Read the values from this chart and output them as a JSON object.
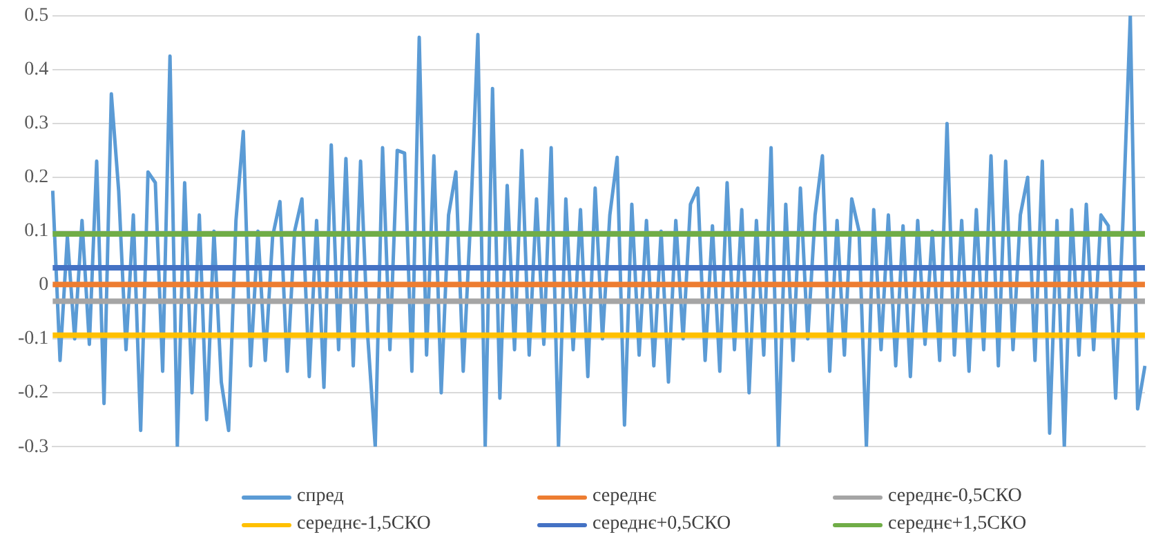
{
  "chart_data": {
    "type": "line",
    "categories": [
      null,
      null,
      null,
      null,
      null,
      null,
      null,
      null,
      null,
      null,
      null,
      null,
      null,
      null,
      null,
      null,
      null,
      null,
      null,
      null,
      null,
      null,
      null,
      null,
      null,
      null,
      null,
      null,
      null,
      null,
      null,
      null,
      null,
      null,
      null,
      null,
      null,
      null,
      null,
      null,
      null,
      null,
      null,
      null,
      null,
      null,
      null,
      null,
      null,
      null,
      null,
      null,
      null,
      null,
      null,
      null,
      null,
      null,
      null,
      null,
      null,
      null,
      null,
      null,
      null,
      null,
      null,
      null,
      null,
      null,
      null,
      null,
      null,
      null,
      null,
      null,
      null,
      null,
      null,
      null,
      null,
      null,
      null,
      null,
      null,
      null,
      null,
      null,
      null,
      null,
      null,
      null,
      null,
      null,
      null,
      null,
      null,
      null,
      null,
      null,
      null,
      null,
      null,
      null,
      null,
      null,
      null,
      null,
      null,
      null,
      null,
      null,
      null,
      null,
      null,
      null,
      null,
      null,
      null,
      null,
      null,
      null,
      null,
      null,
      null,
      null,
      null,
      null,
      null,
      null,
      null,
      null,
      null,
      null,
      null,
      null,
      null,
      null,
      null,
      null,
      null,
      null,
      null,
      null,
      null,
      null,
      null,
      null,
      null,
      null
    ],
    "series": [
      {
        "name": "спред",
        "color": "#5b9bd5",
        "values": [
          0.175,
          -0.14,
          0.09,
          -0.1,
          0.12,
          -0.11,
          0.23,
          -0.22,
          0.355,
          0.175,
          -0.12,
          0.13,
          -0.27,
          0.21,
          0.19,
          -0.16,
          0.425,
          -0.3,
          0.19,
          -0.2,
          0.13,
          -0.25,
          0.1,
          -0.18,
          -0.27,
          0.12,
          0.285,
          -0.15,
          0.1,
          -0.14,
          0.09,
          0.155,
          -0.16,
          0.1,
          0.16,
          -0.17,
          0.12,
          -0.19,
          0.26,
          -0.12,
          0.235,
          -0.15,
          0.23,
          -0.1,
          -0.3,
          0.255,
          -0.12,
          0.25,
          0.245,
          -0.16,
          0.46,
          -0.13,
          0.24,
          -0.2,
          0.13,
          0.21,
          -0.16,
          0.12,
          0.465,
          -0.3,
          0.365,
          -0.21,
          0.185,
          -0.12,
          0.25,
          -0.13,
          0.16,
          -0.11,
          0.255,
          -0.3,
          0.16,
          -0.12,
          0.14,
          -0.17,
          0.18,
          -0.1,
          0.13,
          0.237,
          -0.26,
          0.15,
          -0.13,
          0.12,
          -0.15,
          0.1,
          -0.18,
          0.12,
          -0.1,
          0.15,
          0.18,
          -0.14,
          0.11,
          -0.16,
          0.19,
          -0.12,
          0.14,
          -0.2,
          0.12,
          -0.13,
          0.255,
          -0.3,
          0.15,
          -0.14,
          0.18,
          -0.1,
          0.13,
          0.24,
          -0.16,
          0.12,
          -0.13,
          0.16,
          0.1,
          -0.3,
          0.14,
          -0.12,
          0.13,
          -0.15,
          0.11,
          -0.17,
          0.12,
          -0.11,
          0.1,
          -0.14,
          0.3,
          -0.13,
          0.12,
          -0.16,
          0.14,
          -0.12,
          0.24,
          -0.15,
          0.23,
          -0.12,
          0.13,
          0.2,
          -0.14,
          0.23,
          -0.275,
          0.12,
          -0.3,
          0.14,
          -0.13,
          0.15,
          -0.12,
          0.13,
          0.11,
          -0.21,
          0.12,
          0.5,
          -0.23,
          -0.15
        ]
      },
      {
        "name": "середнє",
        "color": "#ed7d31",
        "values": [
          0.001,
          0.001,
          0.001,
          0.001,
          0.001,
          0.001,
          0.001,
          0.001,
          0.001,
          0.001,
          0.001,
          0.001,
          0.001,
          0.001,
          0.001,
          0.001,
          0.001,
          0.001,
          0.001,
          0.001,
          0.001,
          0.001,
          0.001,
          0.001,
          0.001,
          0.001,
          0.001,
          0.001,
          0.001,
          0.001,
          0.001,
          0.001,
          0.001,
          0.001,
          0.001,
          0.001,
          0.001,
          0.001,
          0.001,
          0.001,
          0.001,
          0.001,
          0.001,
          0.001,
          0.001,
          0.001,
          0.001,
          0.001,
          0.001,
          0.001,
          0.001,
          0.001,
          0.001,
          0.001,
          0.001,
          0.001,
          0.001,
          0.001,
          0.001,
          0.001,
          0.001,
          0.001,
          0.001,
          0.001,
          0.001,
          0.001,
          0.001,
          0.001,
          0.001,
          0.001,
          0.001,
          0.001,
          0.001,
          0.001,
          0.001,
          0.001,
          0.001,
          0.001,
          0.001,
          0.001,
          0.001,
          0.001,
          0.001,
          0.001,
          0.001,
          0.001,
          0.001,
          0.001,
          0.001,
          0.001,
          0.001,
          0.001,
          0.001,
          0.001,
          0.001,
          0.001,
          0.001,
          0.001,
          0.001,
          0.001,
          0.001,
          0.001,
          0.001,
          0.001,
          0.001,
          0.001,
          0.001,
          0.001,
          0.001,
          0.001,
          0.001,
          0.001,
          0.001,
          0.001,
          0.001,
          0.001,
          0.001,
          0.001,
          0.001,
          0.001,
          0.001,
          0.001,
          0.001,
          0.001,
          0.001,
          0.001,
          0.001,
          0.001,
          0.001,
          0.001,
          0.001,
          0.001,
          0.001,
          0.001,
          0.001,
          0.001,
          0.001,
          0.001,
          0.001,
          0.001,
          0.001,
          0.001,
          0.001,
          0.001,
          0.001,
          0.001,
          0.001,
          0.001,
          0.001,
          0.001
        ]
      },
      {
        "name": "середнє-0,5СКО",
        "color": "#a5a5a5",
        "values": [
          -0.03,
          -0.03,
          -0.03,
          -0.03,
          -0.03,
          -0.03,
          -0.03,
          -0.03,
          -0.03,
          -0.03,
          -0.03,
          -0.03,
          -0.03,
          -0.03,
          -0.03,
          -0.03,
          -0.03,
          -0.03,
          -0.03,
          -0.03,
          -0.03,
          -0.03,
          -0.03,
          -0.03,
          -0.03,
          -0.03,
          -0.03,
          -0.03,
          -0.03,
          -0.03,
          -0.03,
          -0.03,
          -0.03,
          -0.03,
          -0.03,
          -0.03,
          -0.03,
          -0.03,
          -0.03,
          -0.03,
          -0.03,
          -0.03,
          -0.03,
          -0.03,
          -0.03,
          -0.03,
          -0.03,
          -0.03,
          -0.03,
          -0.03,
          -0.03,
          -0.03,
          -0.03,
          -0.03,
          -0.03,
          -0.03,
          -0.03,
          -0.03,
          -0.03,
          -0.03,
          -0.03,
          -0.03,
          -0.03,
          -0.03,
          -0.03,
          -0.03,
          -0.03,
          -0.03,
          -0.03,
          -0.03,
          -0.03,
          -0.03,
          -0.03,
          -0.03,
          -0.03,
          -0.03,
          -0.03,
          -0.03,
          -0.03,
          -0.03,
          -0.03,
          -0.03,
          -0.03,
          -0.03,
          -0.03,
          -0.03,
          -0.03,
          -0.03,
          -0.03,
          -0.03,
          -0.03,
          -0.03,
          -0.03,
          -0.03,
          -0.03,
          -0.03,
          -0.03,
          -0.03,
          -0.03,
          -0.03,
          -0.03,
          -0.03,
          -0.03,
          -0.03,
          -0.03,
          -0.03,
          -0.03,
          -0.03,
          -0.03,
          -0.03,
          -0.03,
          -0.03,
          -0.03,
          -0.03,
          -0.03,
          -0.03,
          -0.03,
          -0.03,
          -0.03,
          -0.03,
          -0.03,
          -0.03,
          -0.03,
          -0.03,
          -0.03,
          -0.03,
          -0.03,
          -0.03,
          -0.03,
          -0.03,
          -0.03,
          -0.03,
          -0.03,
          -0.03,
          -0.03,
          -0.03,
          -0.03,
          -0.03,
          -0.03,
          -0.03,
          -0.03,
          -0.03,
          -0.03,
          -0.03,
          -0.03,
          -0.03,
          -0.03,
          -0.03,
          -0.03,
          -0.03
        ]
      },
      {
        "name": "середнє-1,5СКО",
        "color": "#ffc000",
        "values": [
          -0.093,
          -0.093,
          -0.093,
          -0.093,
          -0.093,
          -0.093,
          -0.093,
          -0.093,
          -0.093,
          -0.093,
          -0.093,
          -0.093,
          -0.093,
          -0.093,
          -0.093,
          -0.093,
          -0.093,
          -0.093,
          -0.093,
          -0.093,
          -0.093,
          -0.093,
          -0.093,
          -0.093,
          -0.093,
          -0.093,
          -0.093,
          -0.093,
          -0.093,
          -0.093,
          -0.093,
          -0.093,
          -0.093,
          -0.093,
          -0.093,
          -0.093,
          -0.093,
          -0.093,
          -0.093,
          -0.093,
          -0.093,
          -0.093,
          -0.093,
          -0.093,
          -0.093,
          -0.093,
          -0.093,
          -0.093,
          -0.093,
          -0.093,
          -0.093,
          -0.093,
          -0.093,
          -0.093,
          -0.093,
          -0.093,
          -0.093,
          -0.093,
          -0.093,
          -0.093,
          -0.093,
          -0.093,
          -0.093,
          -0.093,
          -0.093,
          -0.093,
          -0.093,
          -0.093,
          -0.093,
          -0.093,
          -0.093,
          -0.093,
          -0.093,
          -0.093,
          -0.093,
          -0.093,
          -0.093,
          -0.093,
          -0.093,
          -0.093,
          -0.093,
          -0.093,
          -0.093,
          -0.093,
          -0.093,
          -0.093,
          -0.093,
          -0.093,
          -0.093,
          -0.093,
          -0.093,
          -0.093,
          -0.093,
          -0.093,
          -0.093,
          -0.093,
          -0.093,
          -0.093,
          -0.093,
          -0.093,
          -0.093,
          -0.093,
          -0.093,
          -0.093,
          -0.093,
          -0.093,
          -0.093,
          -0.093,
          -0.093,
          -0.093,
          -0.093,
          -0.093,
          -0.093,
          -0.093,
          -0.093,
          -0.093,
          -0.093,
          -0.093,
          -0.093,
          -0.093,
          -0.093,
          -0.093,
          -0.093,
          -0.093,
          -0.093,
          -0.093,
          -0.093,
          -0.093,
          -0.093,
          -0.093,
          -0.093,
          -0.093,
          -0.093,
          -0.093,
          -0.093,
          -0.093,
          -0.093,
          -0.093,
          -0.093,
          -0.093,
          -0.093,
          -0.093,
          -0.093,
          -0.093,
          -0.093,
          -0.093,
          -0.093,
          -0.093,
          -0.093,
          -0.093
        ]
      },
      {
        "name": "середнє+0,5СКО",
        "color": "#4472c4",
        "values": [
          0.032,
          0.032,
          0.032,
          0.032,
          0.032,
          0.032,
          0.032,
          0.032,
          0.032,
          0.032,
          0.032,
          0.032,
          0.032,
          0.032,
          0.032,
          0.032,
          0.032,
          0.032,
          0.032,
          0.032,
          0.032,
          0.032,
          0.032,
          0.032,
          0.032,
          0.032,
          0.032,
          0.032,
          0.032,
          0.032,
          0.032,
          0.032,
          0.032,
          0.032,
          0.032,
          0.032,
          0.032,
          0.032,
          0.032,
          0.032,
          0.032,
          0.032,
          0.032,
          0.032,
          0.032,
          0.032,
          0.032,
          0.032,
          0.032,
          0.032,
          0.032,
          0.032,
          0.032,
          0.032,
          0.032,
          0.032,
          0.032,
          0.032,
          0.032,
          0.032,
          0.032,
          0.032,
          0.032,
          0.032,
          0.032,
          0.032,
          0.032,
          0.032,
          0.032,
          0.032,
          0.032,
          0.032,
          0.032,
          0.032,
          0.032,
          0.032,
          0.032,
          0.032,
          0.032,
          0.032,
          0.032,
          0.032,
          0.032,
          0.032,
          0.032,
          0.032,
          0.032,
          0.032,
          0.032,
          0.032,
          0.032,
          0.032,
          0.032,
          0.032,
          0.032,
          0.032,
          0.032,
          0.032,
          0.032,
          0.032,
          0.032,
          0.032,
          0.032,
          0.032,
          0.032,
          0.032,
          0.032,
          0.032,
          0.032,
          0.032,
          0.032,
          0.032,
          0.032,
          0.032,
          0.032,
          0.032,
          0.032,
          0.032,
          0.032,
          0.032,
          0.032,
          0.032,
          0.032,
          0.032,
          0.032,
          0.032,
          0.032,
          0.032,
          0.032,
          0.032,
          0.032,
          0.032,
          0.032,
          0.032,
          0.032,
          0.032,
          0.032,
          0.032,
          0.032,
          0.032,
          0.032,
          0.032,
          0.032,
          0.032,
          0.032,
          0.032,
          0.032,
          0.032,
          0.032,
          0.032
        ]
      },
      {
        "name": "середнє+1,5СКО",
        "color": "#70ad47",
        "values": [
          0.095,
          0.095,
          0.095,
          0.095,
          0.095,
          0.095,
          0.095,
          0.095,
          0.095,
          0.095,
          0.095,
          0.095,
          0.095,
          0.095,
          0.095,
          0.095,
          0.095,
          0.095,
          0.095,
          0.095,
          0.095,
          0.095,
          0.095,
          0.095,
          0.095,
          0.095,
          0.095,
          0.095,
          0.095,
          0.095,
          0.095,
          0.095,
          0.095,
          0.095,
          0.095,
          0.095,
          0.095,
          0.095,
          0.095,
          0.095,
          0.095,
          0.095,
          0.095,
          0.095,
          0.095,
          0.095,
          0.095,
          0.095,
          0.095,
          0.095,
          0.095,
          0.095,
          0.095,
          0.095,
          0.095,
          0.095,
          0.095,
          0.095,
          0.095,
          0.095,
          0.095,
          0.095,
          0.095,
          0.095,
          0.095,
          0.095,
          0.095,
          0.095,
          0.095,
          0.095,
          0.095,
          0.095,
          0.095,
          0.095,
          0.095,
          0.095,
          0.095,
          0.095,
          0.095,
          0.095,
          0.095,
          0.095,
          0.095,
          0.095,
          0.095,
          0.095,
          0.095,
          0.095,
          0.095,
          0.095,
          0.095,
          0.095,
          0.095,
          0.095,
          0.095,
          0.095,
          0.095,
          0.095,
          0.095,
          0.095,
          0.095,
          0.095,
          0.095,
          0.095,
          0.095,
          0.095,
          0.095,
          0.095,
          0.095,
          0.095,
          0.095,
          0.095,
          0.095,
          0.095,
          0.095,
          0.095,
          0.095,
          0.095,
          0.095,
          0.095,
          0.095,
          0.095,
          0.095,
          0.095,
          0.095,
          0.095,
          0.095,
          0.095,
          0.095,
          0.095,
          0.095,
          0.095,
          0.095,
          0.095,
          0.095,
          0.095,
          0.095,
          0.095,
          0.095,
          0.095,
          0.095,
          0.095,
          0.095,
          0.095,
          0.095,
          0.095,
          0.095,
          0.095,
          0.095,
          0.095
        ]
      }
    ],
    "ylim": [
      -0.3,
      0.5
    ],
    "yticks": [
      -0.3,
      -0.2,
      -0.1,
      0,
      0.1,
      0.2,
      0.3,
      0.4,
      0.5
    ],
    "grid": "y",
    "legend": "bottom",
    "marker": "none",
    "line_style": "solid"
  }
}
